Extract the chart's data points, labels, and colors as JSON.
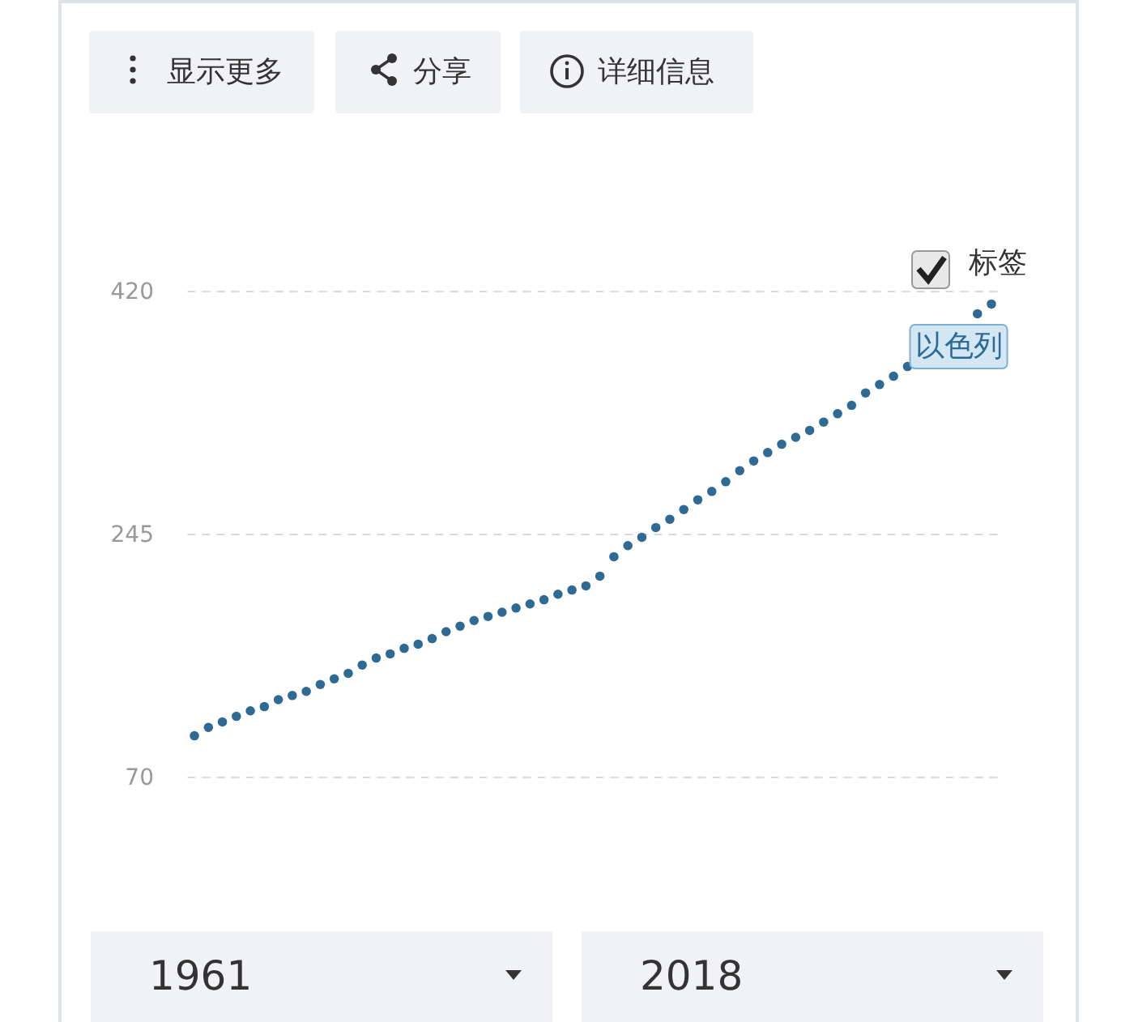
{
  "chart_data": {
    "type": "scatter",
    "categories": [
      null,
      null,
      null,
      null,
      null,
      null,
      null,
      null,
      null,
      null,
      null,
      null,
      null,
      null,
      null,
      null,
      null,
      null,
      null,
      null,
      null,
      null,
      null,
      null,
      null,
      null,
      null,
      null,
      null,
      null,
      null,
      null,
      null,
      null,
      null,
      null,
      null,
      null,
      null,
      null,
      null,
      null,
      null,
      null,
      null,
      null,
      null,
      null,
      null,
      null,
      null,
      null,
      null,
      null,
      null,
      null,
      null,
      null
    ],
    "series": [
      {
        "name": "以色列",
        "color": "#2f6a94",
        "values": [
          100,
          106,
          110,
          114,
          118,
          121,
          126,
          129,
          132,
          137,
          141,
          145,
          151,
          156,
          159,
          163,
          166,
          170,
          175,
          179,
          183,
          186,
          189,
          192,
          195,
          198,
          202,
          205,
          208,
          215,
          229,
          237,
          243,
          250,
          256,
          263,
          270,
          276,
          283,
          291,
          298,
          304,
          310,
          315,
          320,
          326,
          332,
          338,
          347,
          353,
          359,
          366,
          null,
          null,
          null,
          null,
          404,
          411
        ]
      }
    ],
    "ylim": [
      70,
      420
    ],
    "yticks": [
      70,
      245,
      420
    ],
    "tick_labels": "y",
    "grid": "y",
    "marker": "circle",
    "annotations": [
      "显示更多",
      "分享",
      "详细信息",
      "标签",
      "1961",
      "2018"
    ]
  }
}
